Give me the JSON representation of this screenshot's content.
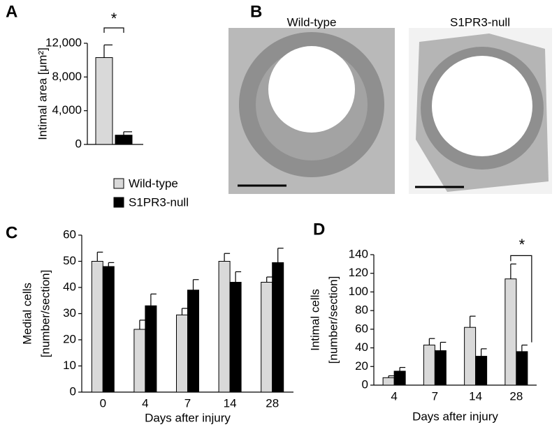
{
  "chart_data": [
    {
      "type": "bar",
      "panel": "A",
      "ylabel": "Intimal area [μm²]",
      "categories": [
        null,
        null
      ],
      "values": [
        10300,
        1100
      ],
      "errors": [
        1500,
        400
      ],
      "colors": [
        "#d9d9d9",
        "#000000"
      ],
      "ylim": [
        0,
        12000
      ],
      "yticks": [
        0,
        {
          "value": 4000,
          "label": "4,000"
        },
        {
          "value": 8000,
          "label": "8,000"
        },
        {
          "value": 12000,
          "label": "12,000"
        }
      ],
      "annotations": [
        "*"
      ]
    },
    {
      "type": "bar",
      "panel": "C",
      "ylabel": [
        "Medial cells",
        "[number/section]"
      ],
      "xlabel": "Days after injury",
      "categories": [
        "0",
        "4",
        "7",
        "14",
        "28"
      ],
      "series": [
        {
          "name": "Wild-type",
          "color": "#d9d9d9",
          "values": [
            50,
            24,
            29.5,
            50,
            42
          ],
          "errors": [
            3.5,
            3.5,
            2.5,
            3,
            2
          ]
        },
        {
          "name": "S1PR3-null",
          "color": "#000000",
          "values": [
            48,
            33,
            39,
            42,
            49.5
          ],
          "errors": [
            1.5,
            4.5,
            4,
            4,
            5.5
          ]
        }
      ],
      "ylim": [
        0,
        60
      ],
      "yticks": [
        0,
        10,
        20,
        30,
        40,
        50,
        60
      ]
    },
    {
      "type": "bar",
      "panel": "D",
      "ylabel": [
        "Intimal cells",
        "[number/section]"
      ],
      "xlabel": "Days after injury",
      "categories": [
        "4",
        "7",
        "14",
        "28"
      ],
      "series": [
        {
          "name": "Wild-type",
          "color": "#d9d9d9",
          "values": [
            8,
            43,
            62,
            114
          ],
          "errors": [
            2,
            7,
            12,
            16
          ]
        },
        {
          "name": "S1PR3-null",
          "color": "#000000",
          "values": [
            15,
            37,
            31,
            36
          ],
          "errors": [
            4,
            9,
            8,
            7
          ]
        }
      ],
      "ylim": [
        0,
        140
      ],
      "yticks": [
        0,
        20,
        40,
        60,
        80,
        100,
        120,
        140
      ],
      "annotations": [
        "*"
      ]
    }
  ],
  "panel_b": {
    "label": "B",
    "titles": [
      "Wild-type",
      "S1PR3-null"
    ]
  }
}
